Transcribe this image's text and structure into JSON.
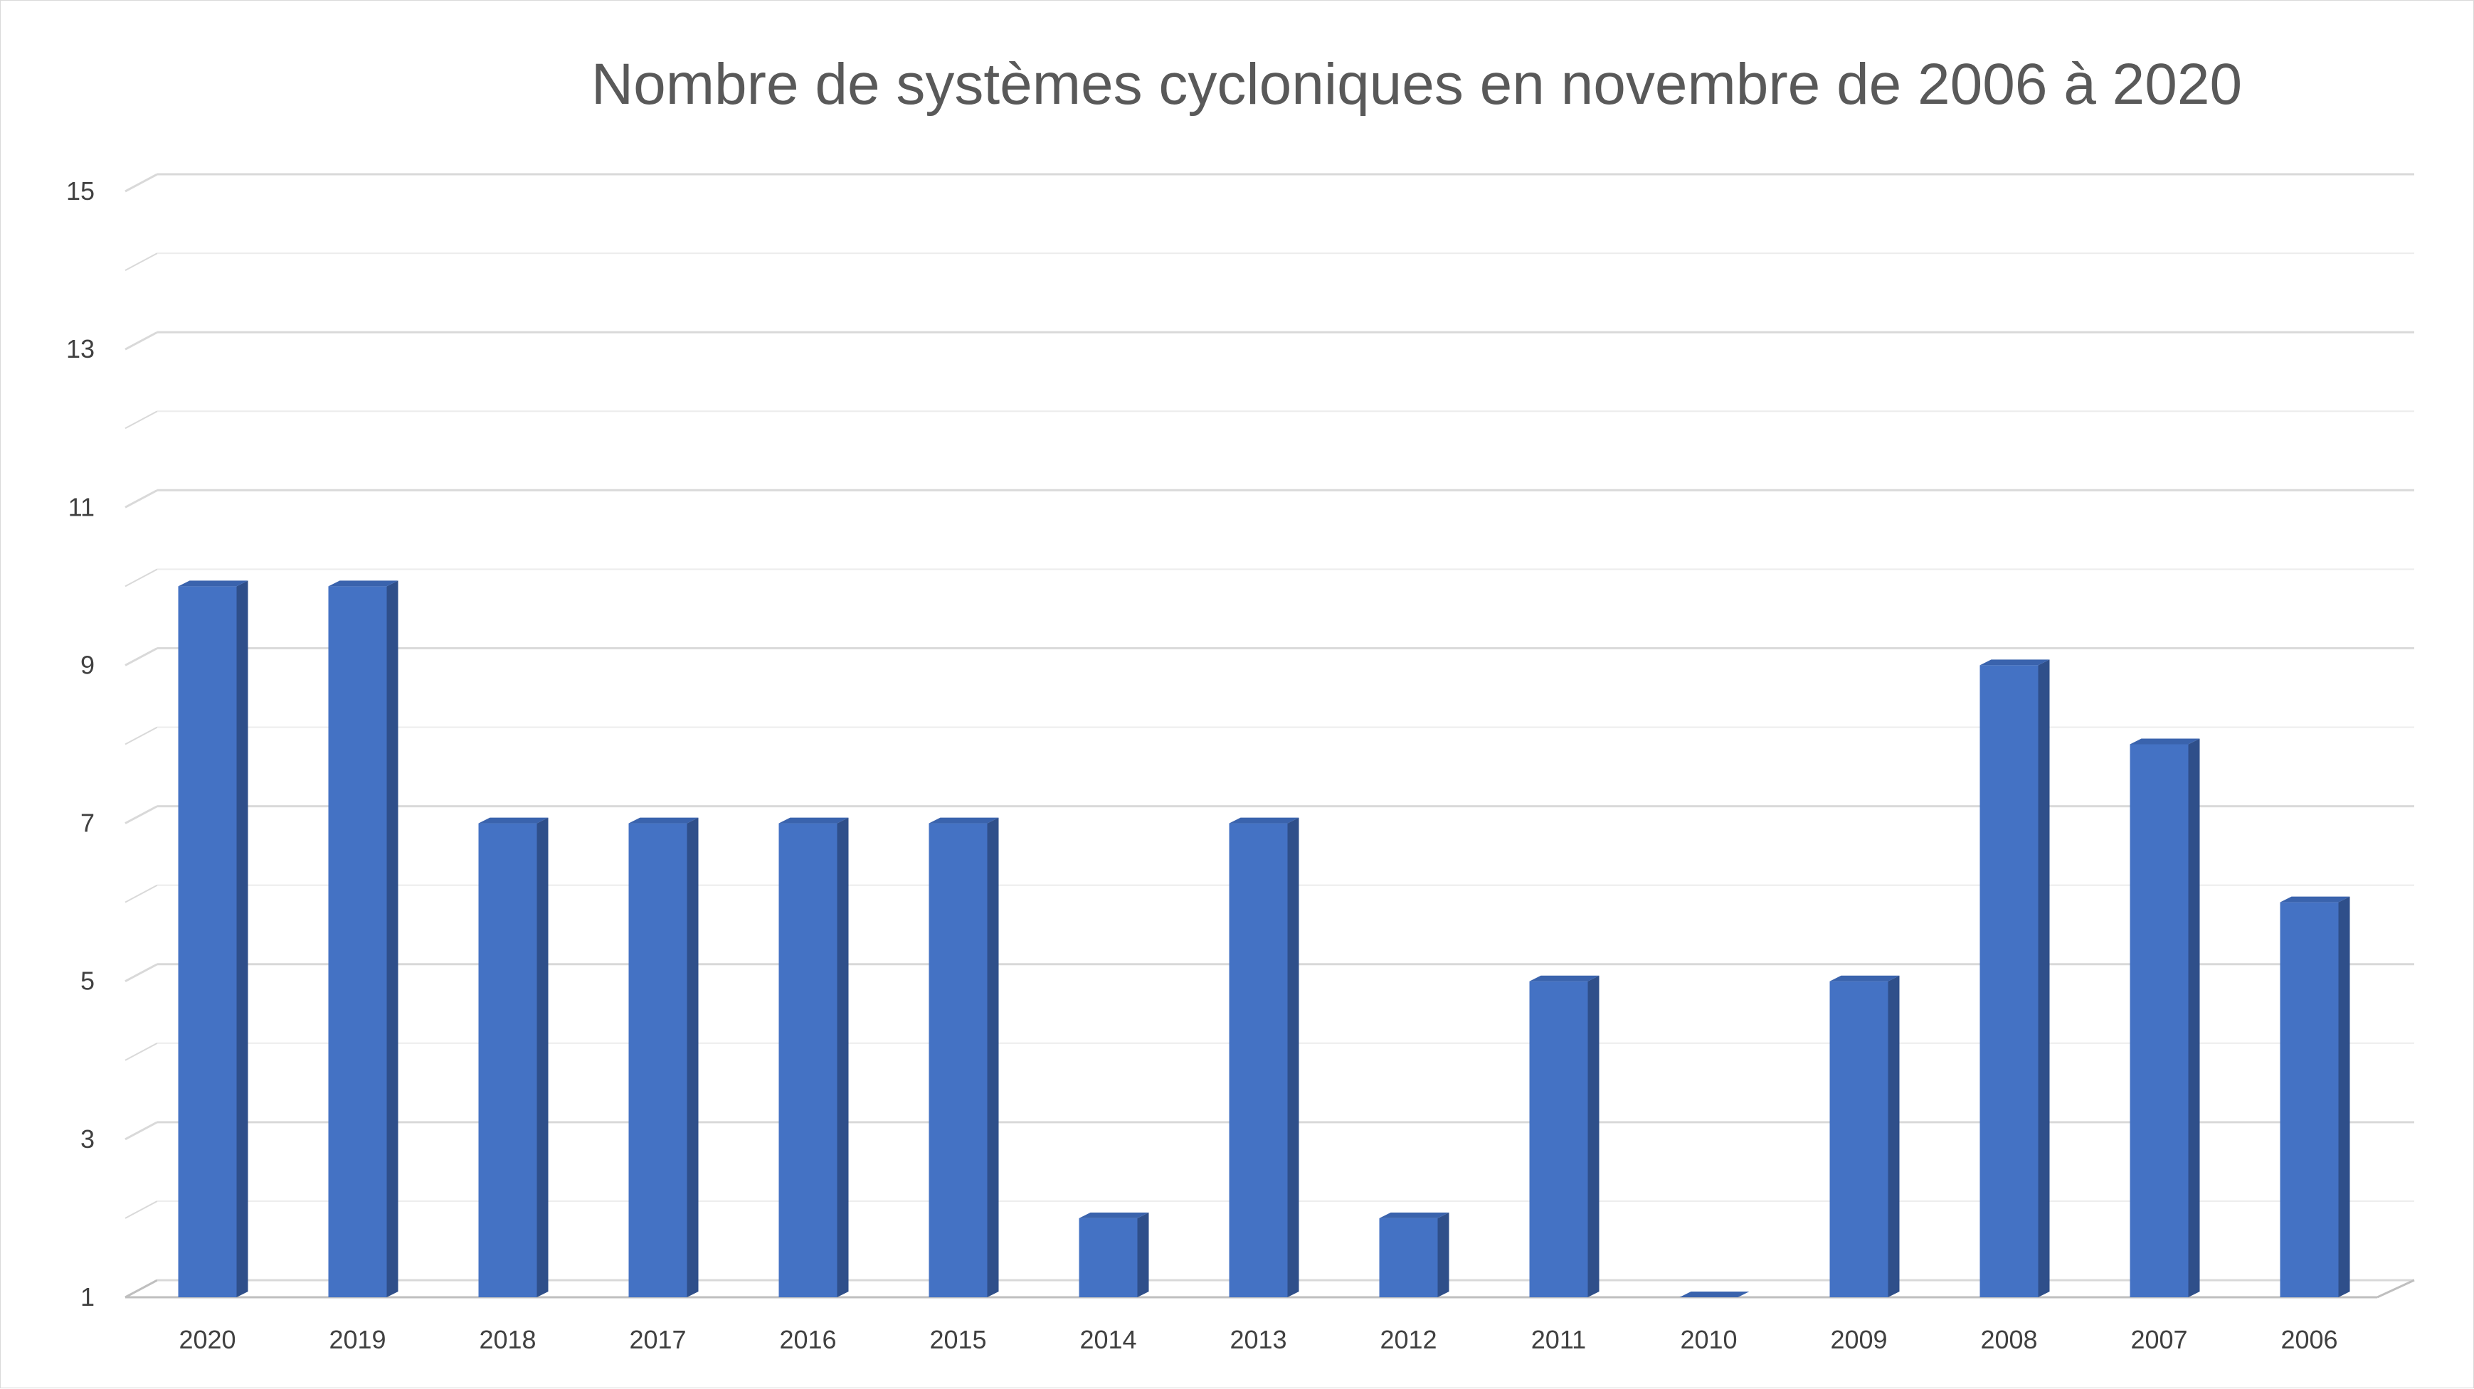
{
  "chart_data": {
    "type": "bar",
    "title": "Nombre de systèmes cycloniques en novembre de 2006 à 2020",
    "categories": [
      "2020",
      "2019",
      "2018",
      "2017",
      "2016",
      "2015",
      "2014",
      "2013",
      "2012",
      "2011",
      "2010",
      "2009",
      "2008",
      "2007",
      "2006"
    ],
    "values": [
      10,
      10,
      7,
      7,
      7,
      7,
      2,
      7,
      2,
      5,
      1,
      5,
      9,
      8,
      6
    ],
    "ylim": [
      1,
      15
    ],
    "y_ticks": [
      "1",
      "3",
      "5",
      "7",
      "9",
      "11",
      "13",
      "15"
    ],
    "grid": true,
    "legend": "none",
    "style": "3d-column",
    "colors": {
      "bar_front": "#4472C4",
      "bar_side": "#2F4F8A",
      "bar_top": "#3A63AD",
      "grid": "#d9d9d9",
      "title": "#595959"
    }
  }
}
